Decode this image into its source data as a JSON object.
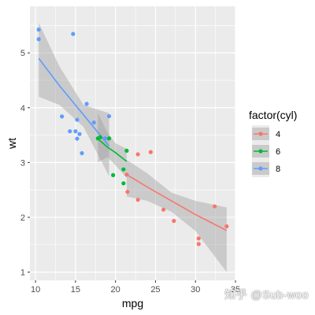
{
  "chart_data": {
    "type": "scatter",
    "xlabel": "mpg",
    "ylabel": "wt",
    "xlim": [
      9.3,
      35.0
    ],
    "ylim": [
      0.85,
      5.85
    ],
    "x_ticks": [
      10,
      15,
      20,
      25,
      30,
      35
    ],
    "y_ticks": [
      1,
      2,
      3,
      4,
      5
    ],
    "grid": true,
    "legend": {
      "title": "factor(cyl)",
      "placement": "right"
    },
    "series": [
      {
        "name": "4",
        "color": "#F8766D",
        "points": [
          [
            22.8,
            2.32
          ],
          [
            24.4,
            3.19
          ],
          [
            22.8,
            3.15
          ],
          [
            32.4,
            2.2
          ],
          [
            30.4,
            1.615
          ],
          [
            33.9,
            1.835
          ],
          [
            21.5,
            2.465
          ],
          [
            27.3,
            1.935
          ],
          [
            26.0,
            2.14
          ],
          [
            30.4,
            1.513
          ],
          [
            21.4,
            2.78
          ]
        ],
        "fit": [
          [
            21.4,
            2.78
          ],
          [
            24.0,
            2.55
          ],
          [
            27.0,
            2.3
          ],
          [
            30.0,
            2.05
          ],
          [
            33.9,
            1.76
          ]
        ],
        "band_upper": [
          [
            21.4,
            3.05
          ],
          [
            24.0,
            2.8
          ],
          [
            27.0,
            2.45
          ],
          [
            30.0,
            2.3
          ],
          [
            33.9,
            2.18
          ]
        ],
        "band_lower": [
          [
            21.4,
            2.38
          ],
          [
            24.0,
            2.3
          ],
          [
            27.0,
            2.1
          ],
          [
            30.0,
            1.75
          ],
          [
            33.9,
            1.0
          ]
        ]
      },
      {
        "name": "6",
        "color": "#00BA38",
        "points": [
          [
            21.0,
            2.62
          ],
          [
            21.0,
            2.875
          ],
          [
            21.4,
            3.215
          ],
          [
            18.1,
            3.46
          ],
          [
            19.2,
            3.44
          ],
          [
            17.8,
            3.44
          ],
          [
            19.7,
            2.77
          ]
        ],
        "fit": [
          [
            17.8,
            3.43
          ],
          [
            19.0,
            3.28
          ],
          [
            20.0,
            3.18
          ],
          [
            21.4,
            3.02
          ]
        ],
        "band_upper": [
          [
            17.8,
            3.9
          ],
          [
            19.0,
            3.55
          ],
          [
            20.0,
            3.35
          ],
          [
            21.4,
            3.25
          ]
        ],
        "band_lower": [
          [
            17.8,
            3.0
          ],
          [
            19.0,
            3.1
          ],
          [
            20.0,
            2.95
          ],
          [
            21.4,
            2.72
          ]
        ]
      },
      {
        "name": "8",
        "color": "#619CFF",
        "points": [
          [
            18.7,
            3.44
          ],
          [
            14.3,
            3.57
          ],
          [
            16.4,
            4.07
          ],
          [
            17.3,
            3.73
          ],
          [
            15.2,
            3.78
          ],
          [
            10.4,
            5.25
          ],
          [
            10.4,
            5.424
          ],
          [
            14.7,
            5.345
          ],
          [
            15.5,
            3.52
          ],
          [
            15.2,
            3.435
          ],
          [
            13.3,
            3.84
          ],
          [
            19.2,
            3.845
          ],
          [
            15.8,
            3.17
          ],
          [
            15.0,
            3.57
          ]
        ],
        "fit": [
          [
            10.4,
            4.9
          ],
          [
            13.0,
            4.4
          ],
          [
            16.0,
            3.87
          ],
          [
            19.2,
            3.3
          ]
        ],
        "band_upper": [
          [
            10.4,
            5.55
          ],
          [
            13.0,
            4.75
          ],
          [
            16.0,
            4.05
          ],
          [
            19.2,
            3.9
          ]
        ],
        "band_lower": [
          [
            10.4,
            4.2
          ],
          [
            13.0,
            4.05
          ],
          [
            16.0,
            3.65
          ],
          [
            19.2,
            2.75
          ]
        ]
      }
    ]
  },
  "watermark": "知乎 @Sub-woo"
}
